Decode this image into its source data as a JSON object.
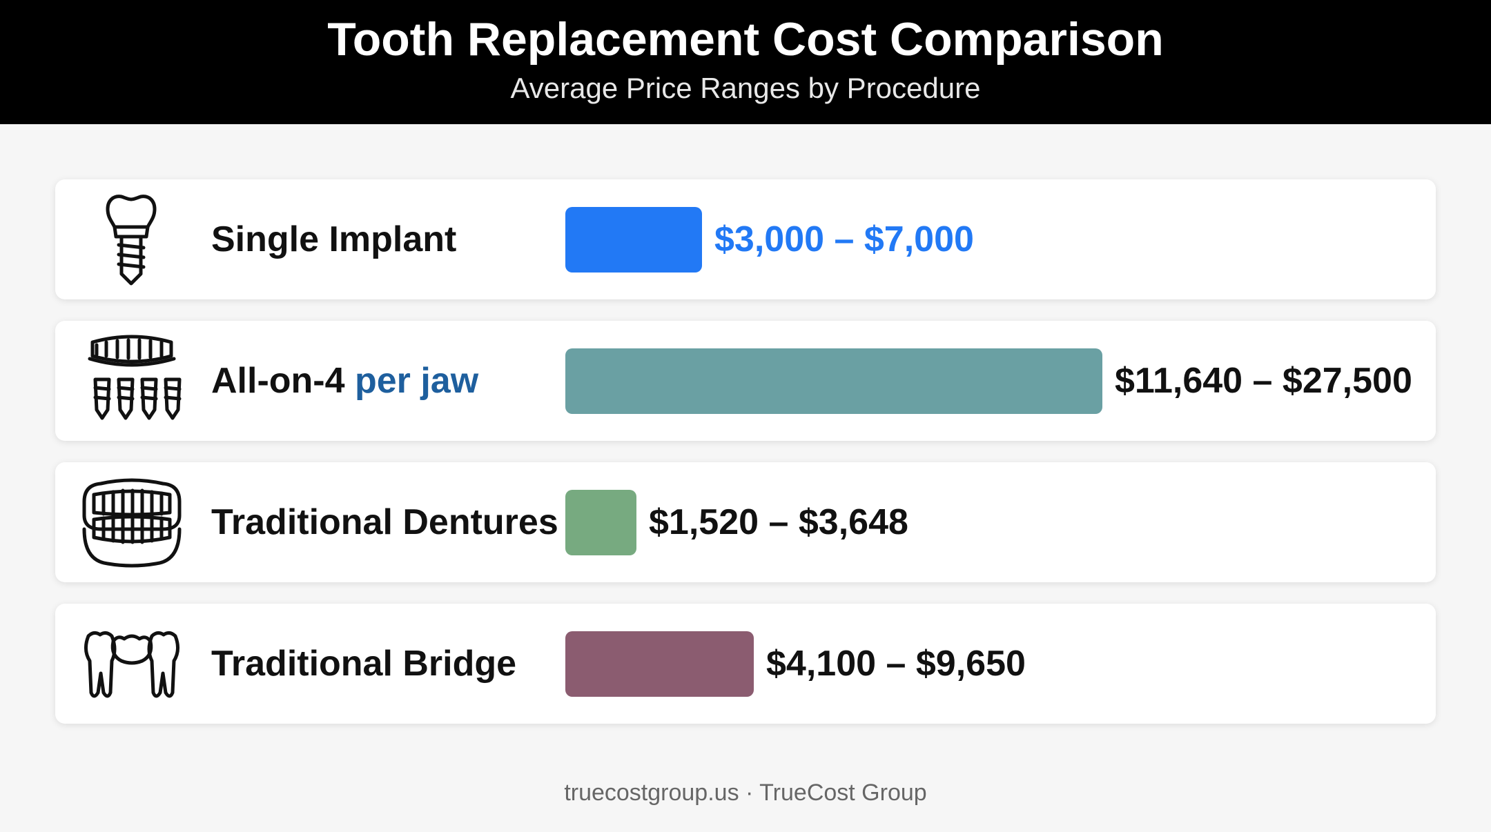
{
  "header": {
    "title": "Tooth Replacement Cost Comparison",
    "subtitle": "Average Price Ranges by Procedure"
  },
  "chart_data": {
    "type": "bar",
    "orientation": "horizontal",
    "title": "Tooth Replacement Cost Comparison",
    "subtitle": "Average Price Ranges by Procedure",
    "categories": [
      "Single Implant",
      "All-on-4 per jaw",
      "Traditional Dentures",
      "Traditional Bridge"
    ],
    "series": [
      {
        "values": [
          7000,
          27500,
          3648,
          9650
        ],
        "ranges": [
          [
            3000,
            7000
          ],
          [
            11640,
            27500
          ],
          [
            1520,
            3648
          ],
          [
            4100,
            9650
          ]
        ]
      }
    ],
    "rows": [
      {
        "label": "Single Implant",
        "label_accent": "",
        "icon": "dental-implant-icon",
        "min": 3000,
        "max": 7000,
        "range_text": "$3,000 – $7,000",
        "bar_color": "#2279f5",
        "range_color": "#2279f5"
      },
      {
        "label": "All-on-4 ",
        "label_accent": "per jaw",
        "icon": "all-on-4-implants-icon",
        "min": 11640,
        "max": 27500,
        "range_text": "$11,640 – $27,500",
        "bar_color": "#6aa0a3",
        "range_color": "#111111"
      },
      {
        "label": "Traditional Dentures",
        "label_accent": "",
        "icon": "dentures-icon",
        "min": 1520,
        "max": 3648,
        "range_text": "$1,520 – $3,648",
        "bar_color": "#77aa80",
        "range_color": "#111111"
      },
      {
        "label": "Traditional Bridge",
        "label_accent": "",
        "icon": "dental-bridge-icon",
        "min": 4100,
        "max": 9650,
        "range_text": "$4,100 – $9,650",
        "bar_color": "#8b5c70",
        "range_color": "#111111"
      }
    ],
    "xlim": [
      0,
      27500
    ],
    "grid": false,
    "legend": "none"
  },
  "footer": {
    "text": "truecostgroup.us · TrueCost Group"
  }
}
